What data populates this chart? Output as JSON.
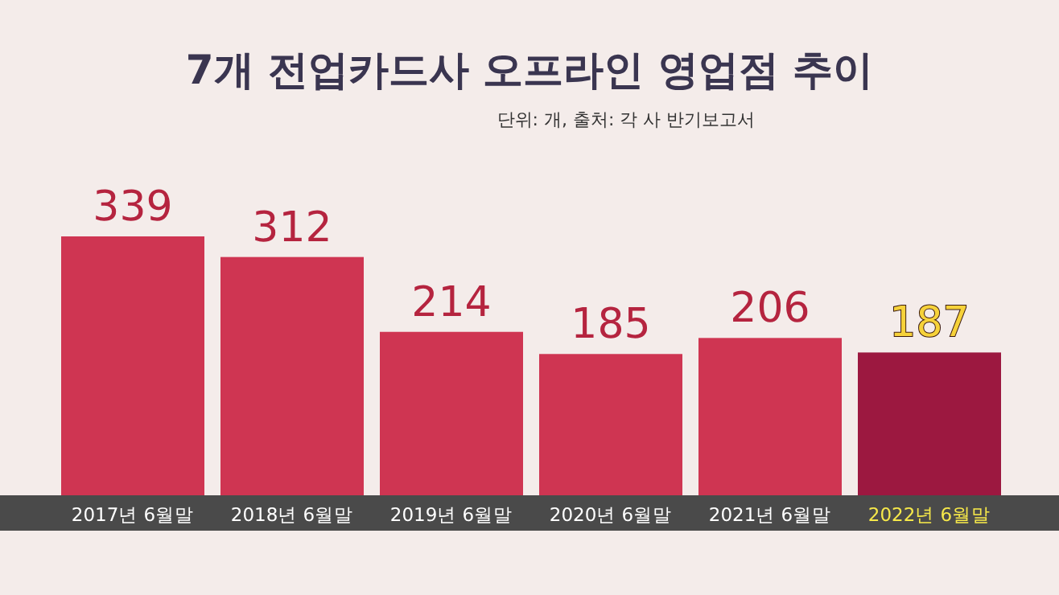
{
  "chart_data": {
    "type": "bar",
    "title": "7개 전업카드사 오프라인 영업점 추이",
    "subtitle": "단위: 개, 출처: 각 사 반기보고서",
    "categories": [
      "2017년 6월말",
      "2018년 6월말",
      "2019년 6월말",
      "2020년 6월말",
      "2021년 6월말",
      "2022년 6월말"
    ],
    "values": [
      339,
      312,
      214,
      185,
      206,
      187
    ],
    "colors": [
      "#cf3552",
      "#cf3552",
      "#cf3552",
      "#cf3552",
      "#cf3552",
      "#9c1840"
    ],
    "data_labels": true
  }
}
